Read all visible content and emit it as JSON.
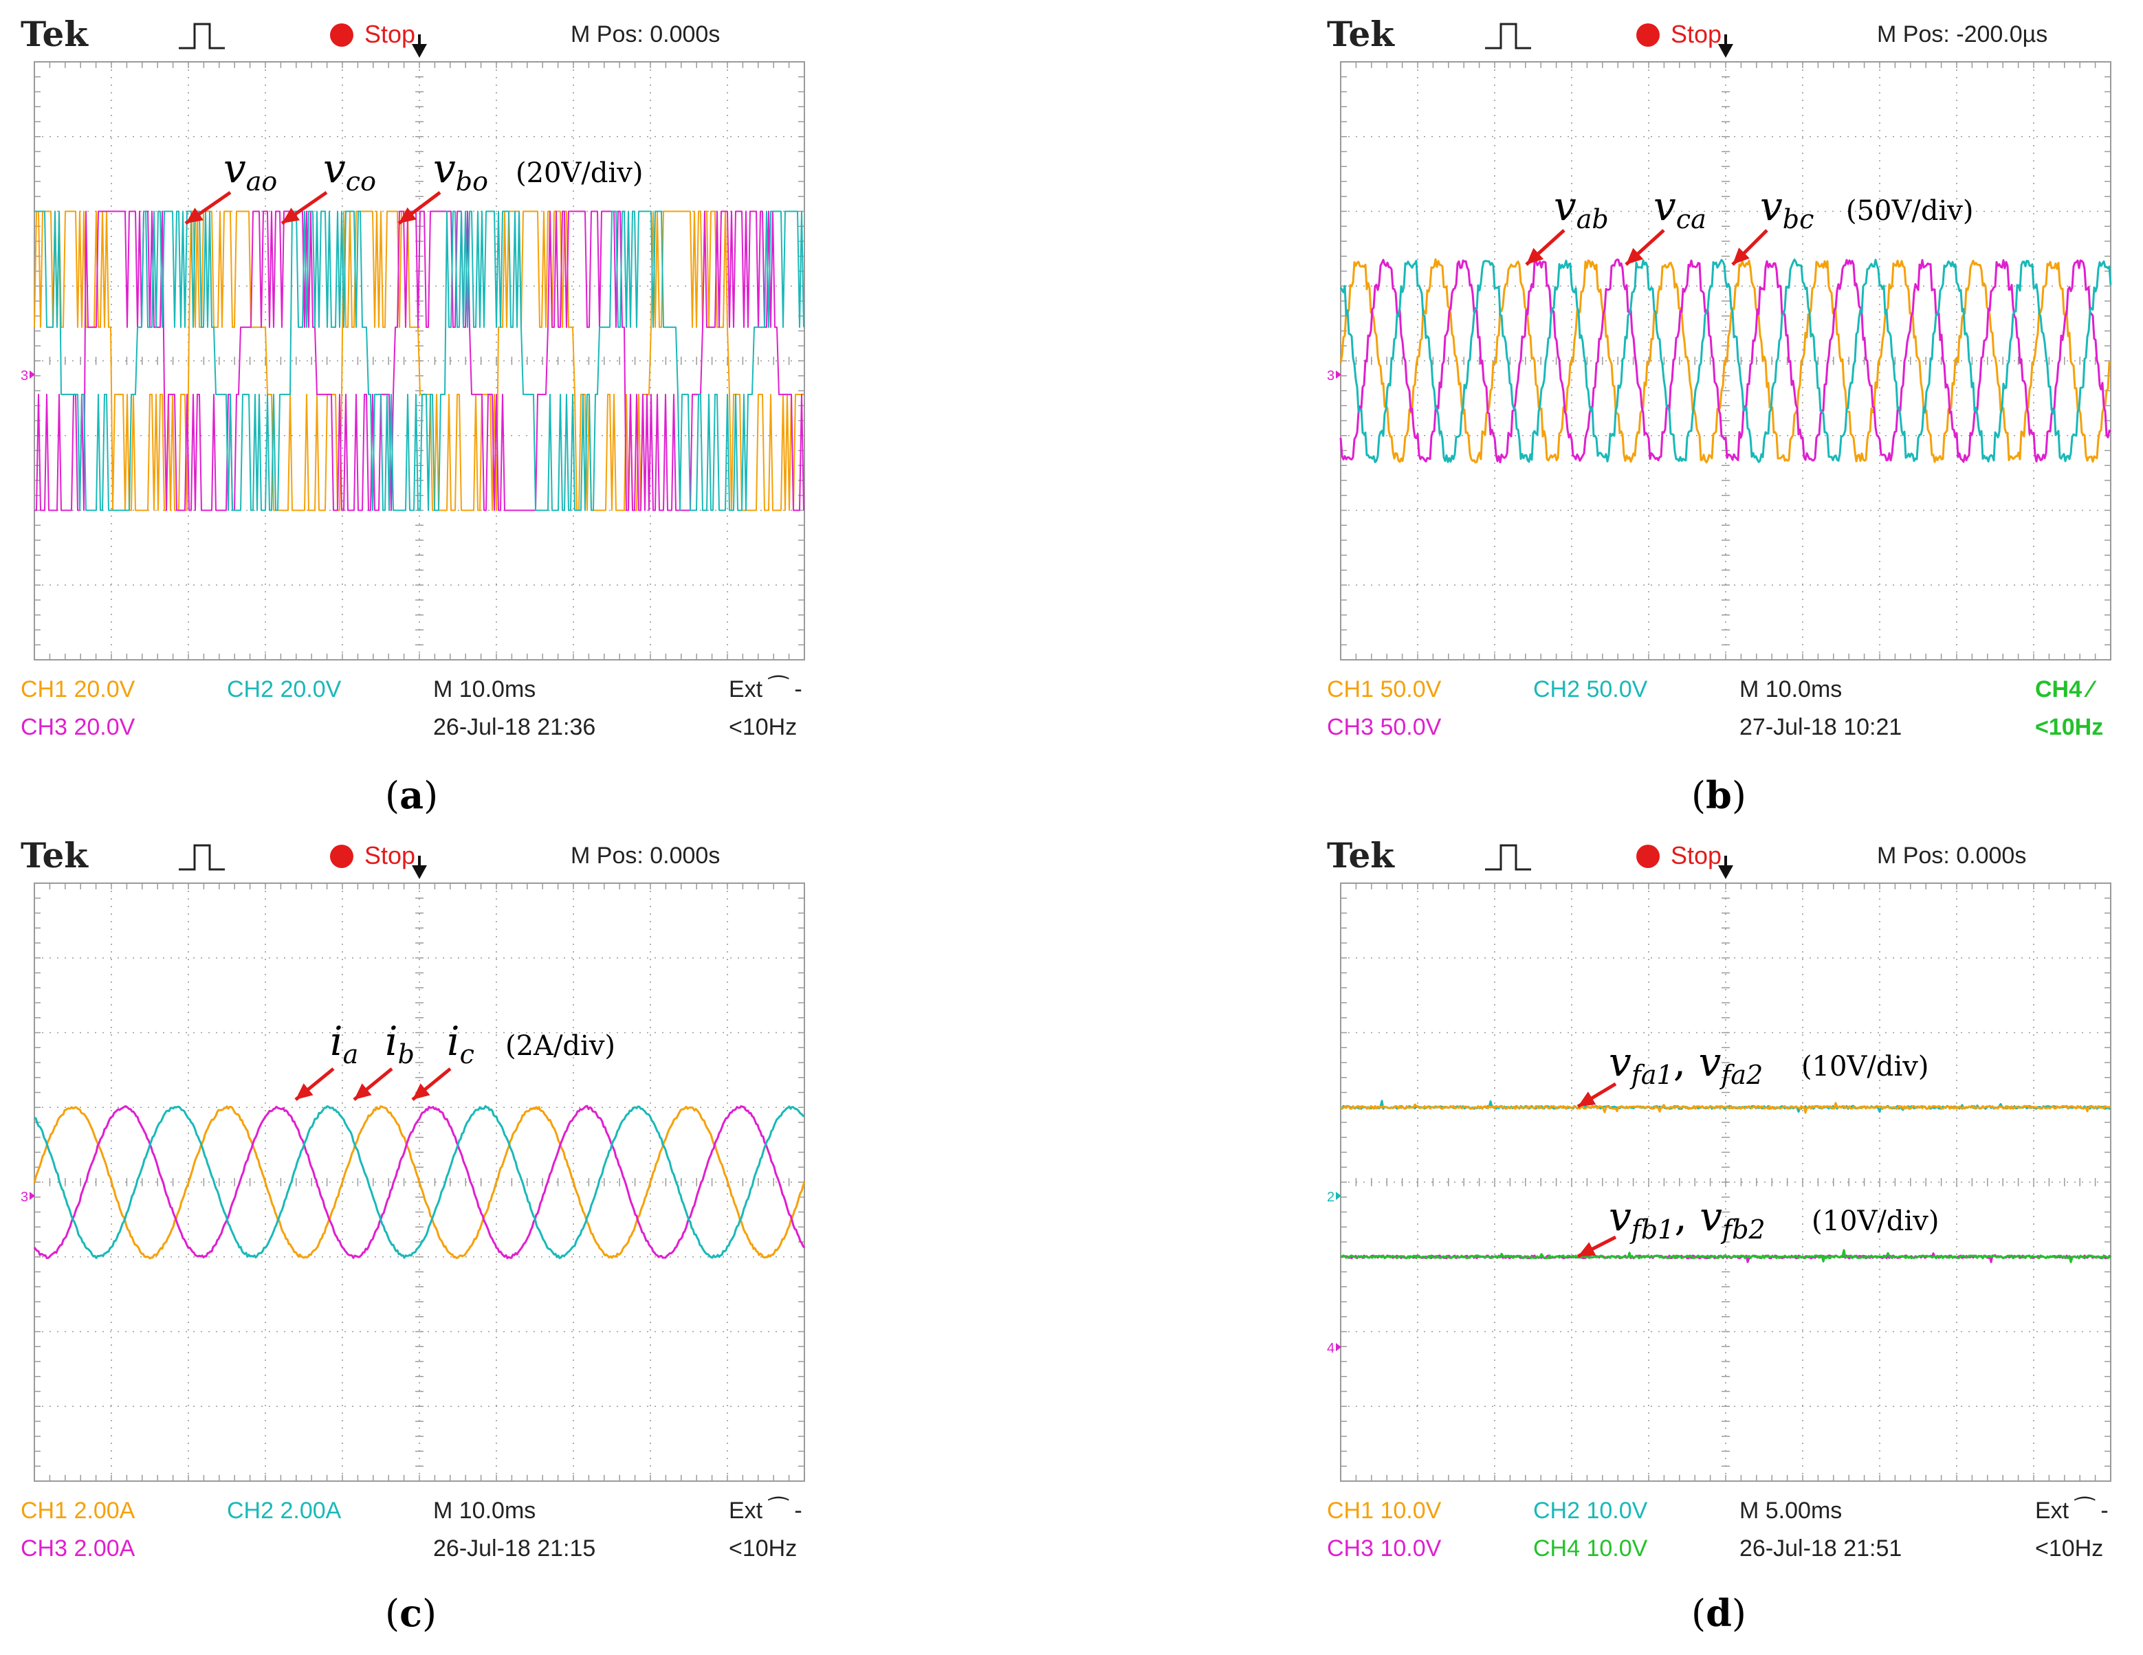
{
  "colors": {
    "ch1": "#f5a10a",
    "ch2": "#1ab8b8",
    "ch3": "#df1fcf",
    "ch4": "#22c22a",
    "grid": "#9a9a9a",
    "arrow": "#e11a1a",
    "stop": "#e41b1b"
  },
  "chart_data": [
    {
      "type": "line",
      "id": "a",
      "caption": "a",
      "header": {
        "brand": "Tek",
        "status": "Stop",
        "mpos": "M Pos: 0.000s"
      },
      "annotation": {
        "labels": [
          {
            "base": "v",
            "sub": "ao"
          },
          {
            "base": "v",
            "sub": "co"
          },
          {
            "base": "v",
            "sub": "bo"
          }
        ],
        "scale": "(20V/div)"
      },
      "footer": {
        "ch1": "CH1  20.0V",
        "ch2": "CH2  20.0V",
        "ch3": "CH3  20.0V",
        "ch4": "",
        "time": "M 10.0ms",
        "date": "26-Jul-18 21:36",
        "trig": "Ext ⁀ -",
        "freq": "<10Hz"
      },
      "ylim": [
        -4,
        4
      ],
      "xlim": [
        0,
        10
      ],
      "grid": true,
      "series": [
        {
          "name": "v_ao",
          "channel": "ch1",
          "waveform": "multilevel-pwm",
          "amplitude_div": 2,
          "period_div": 2.0,
          "phase_deg": 0
        },
        {
          "name": "v_bo",
          "channel": "ch3",
          "waveform": "multilevel-pwm",
          "amplitude_div": 2,
          "period_div": 2.0,
          "phase_deg": -120
        },
        {
          "name": "v_co",
          "channel": "ch2",
          "waveform": "multilevel-pwm",
          "amplitude_div": 2,
          "period_div": 2.0,
          "phase_deg": 120
        }
      ]
    },
    {
      "type": "line",
      "id": "b",
      "caption": "b",
      "header": {
        "brand": "Tek",
        "status": "Stop",
        "mpos": "M Pos: -200.0µs"
      },
      "annotation": {
        "labels": [
          {
            "base": "v",
            "sub": "ab"
          },
          {
            "base": "v",
            "sub": "ca"
          },
          {
            "base": "v",
            "sub": "bc"
          }
        ],
        "scale": "(50V/div)"
      },
      "footer": {
        "ch1": "CH1  50.0V",
        "ch2": "CH2  50.0V",
        "ch3": "CH3  50.0V",
        "ch4": "CH4 ⁄",
        "time": "M 10.0ms",
        "date": "27-Jul-18 10:21",
        "trig": "",
        "freq": "<10Hz"
      },
      "ylim": [
        -4,
        4
      ],
      "xlim": [
        0,
        10
      ],
      "grid": true,
      "series": [
        {
          "name": "v_ab",
          "channel": "ch1",
          "waveform": "stepped",
          "amplitude_div": 1.3,
          "period_div": 1.0,
          "phase_deg": 0
        },
        {
          "name": "v_bc",
          "channel": "ch3",
          "waveform": "stepped",
          "amplitude_div": 1.3,
          "period_div": 1.0,
          "phase_deg": -120
        },
        {
          "name": "v_ca",
          "channel": "ch2",
          "waveform": "stepped",
          "amplitude_div": 1.3,
          "period_div": 1.0,
          "phase_deg": 120
        }
      ]
    },
    {
      "type": "line",
      "id": "c",
      "caption": "c",
      "header": {
        "brand": "Tek",
        "status": "Stop",
        "mpos": "M Pos: 0.000s"
      },
      "annotation": {
        "labels": [
          {
            "base": "i",
            "sub": "a"
          },
          {
            "base": "i",
            "sub": "b"
          },
          {
            "base": "i",
            "sub": "c"
          }
        ],
        "scale": "(2A/div)"
      },
      "footer": {
        "ch1": "CH1  2.00A",
        "ch2": "CH2  2.00A",
        "ch3": "CH3  2.00A",
        "ch4": "",
        "time": "M 10.0ms",
        "date": "26-Jul-18 21:15",
        "trig": "Ext ⁀ -",
        "freq": "<10Hz"
      },
      "ylim": [
        -4,
        4
      ],
      "xlim": [
        0,
        10
      ],
      "grid": true,
      "series": [
        {
          "name": "i_a",
          "channel": "ch1",
          "waveform": "sine",
          "amplitude_div": 1.0,
          "period_div": 2.0,
          "phase_deg": 0
        },
        {
          "name": "i_b",
          "channel": "ch3",
          "waveform": "sine",
          "amplitude_div": 1.0,
          "period_div": 2.0,
          "phase_deg": -120
        },
        {
          "name": "i_c",
          "channel": "ch2",
          "waveform": "sine",
          "amplitude_div": 1.0,
          "period_div": 2.0,
          "phase_deg": 120
        }
      ]
    },
    {
      "type": "line",
      "id": "d",
      "caption": "d",
      "header": {
        "brand": "Tek",
        "status": "Stop",
        "mpos": "M Pos: 0.000s"
      },
      "annotation": {
        "labels": [
          {
            "base": "v",
            "sub": "fa1"
          },
          {
            "base": "v",
            "sub": "fa2"
          }
        ],
        "scale": "(10V/div)",
        "labels2": [
          {
            "base": "v",
            "sub": "fb1"
          },
          {
            "base": "v",
            "sub": "fb2"
          }
        ],
        "scale2": "(10V/div)"
      },
      "footer": {
        "ch1": "CH1  10.0V",
        "ch2": "CH2  10.0V",
        "ch3": "CH3  10.0V",
        "ch4": "CH4  10.0V",
        "time": "M 5.00ms",
        "date": "26-Jul-18 21:51",
        "trig": "Ext ⁀ -",
        "freq": "<10Hz"
      },
      "ylim": [
        -4,
        4
      ],
      "xlim": [
        0,
        10
      ],
      "grid": true,
      "series": [
        {
          "name": "v_fa1",
          "channel": "ch2",
          "waveform": "dc",
          "level_div": 1.0
        },
        {
          "name": "v_fa2",
          "channel": "ch1",
          "waveform": "dc",
          "level_div": 1.0
        },
        {
          "name": "v_fb1",
          "channel": "ch3",
          "waveform": "dc",
          "level_div": -1.0
        },
        {
          "name": "v_fb2",
          "channel": "ch4",
          "waveform": "dc",
          "level_div": -1.0
        }
      ]
    }
  ]
}
